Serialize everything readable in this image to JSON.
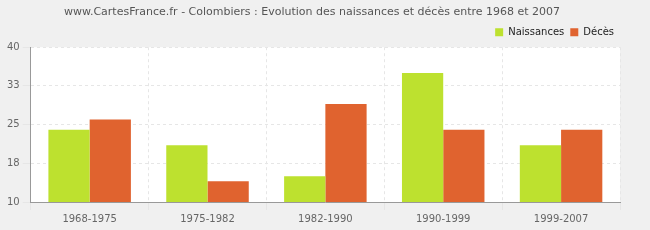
{
  "chart_data": {
    "type": "bar",
    "title": "www.CartesFrance.fr - Colombiers : Evolution des naissances et décès entre 1968 et 2007",
    "categories": [
      "1968-1975",
      "1975-1982",
      "1982-1990",
      "1990-1999",
      "1999-2007"
    ],
    "series": [
      {
        "name": "Naissances",
        "color": "#bde12f",
        "values": [
          24,
          21,
          15,
          35,
          21
        ]
      },
      {
        "name": "Décès",
        "color": "#e0632f",
        "values": [
          26,
          14,
          29,
          24,
          24
        ]
      }
    ],
    "ylim": [
      10,
      40
    ],
    "yticks": [
      10,
      {
        "value": 17.5,
        "label": "18"
      },
      25,
      {
        "value": 32.5,
        "label": "33"
      },
      40
    ],
    "grid": true,
    "legend": "top-right"
  }
}
